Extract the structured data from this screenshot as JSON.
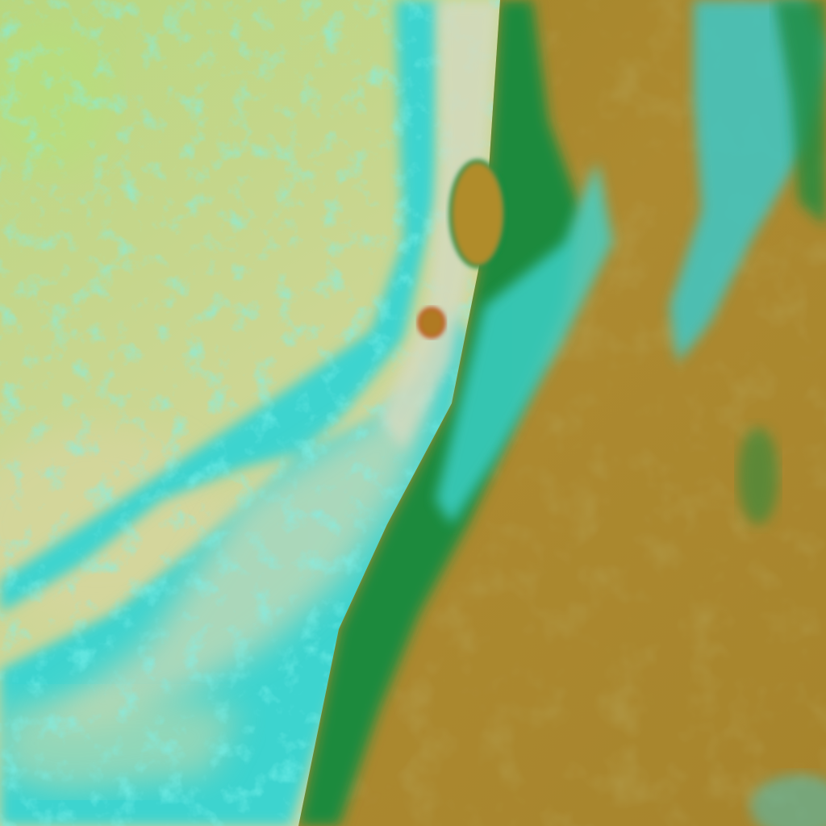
{
  "image": {
    "kind": "false-color satellite imagery",
    "colors": {
      "haze": "#c9d68e",
      "haze_light": "#d8dcb0",
      "cloud_cyan": "#3fd6d0",
      "land": "#a8872e",
      "land_dark": "#8e6f22",
      "vegetation_green": "#1f8a3c",
      "dark_green": "#0f5a2a",
      "pale_green": "#b8e07a"
    }
  }
}
